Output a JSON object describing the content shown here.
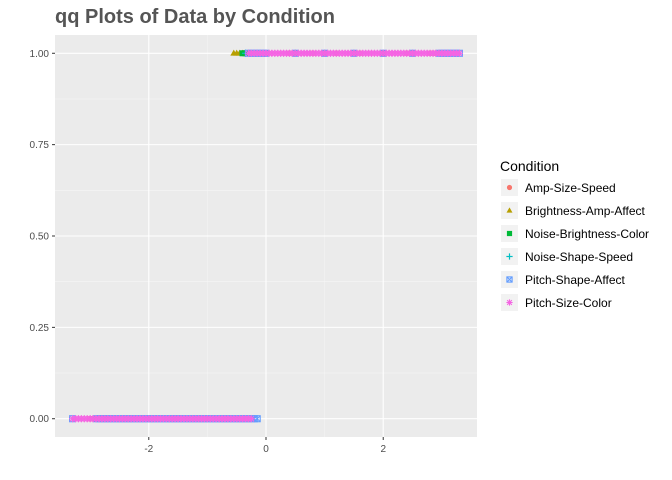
{
  "chart_data": {
    "type": "scatter",
    "title": "qq Plots of Data by Condition",
    "xlabel": "",
    "ylabel": "",
    "xlim": [
      -3.6,
      3.6
    ],
    "ylim": [
      -0.05,
      1.05
    ],
    "x_ticks": [
      -2,
      0,
      2
    ],
    "y_ticks": [
      0.0,
      0.25,
      0.5,
      0.75,
      1.0
    ],
    "x_tick_labels": [
      "-2",
      "0",
      "2"
    ],
    "y_tick_labels": [
      "0.00",
      "0.25",
      "0.50",
      "0.75",
      "1.00"
    ],
    "grid": true,
    "legend": {
      "title": "Condition",
      "position": "right"
    },
    "series": [
      {
        "name": "Amp-Size-Speed",
        "color": "#F8766D",
        "shape": "circle",
        "points_y0": [
          -3.0,
          -2.8,
          -2.6,
          -2.4,
          -2.2,
          -2.0,
          -1.8,
          -1.6,
          -1.4,
          -1.2,
          -1.0,
          -0.8
        ],
        "points_y1": [
          -0.3,
          0.0,
          0.4,
          0.8,
          1.2,
          1.6,
          2.0,
          2.4,
          2.8,
          3.0
        ]
      },
      {
        "name": "Brightness-Amp-Affect",
        "color": "#B79F00",
        "shape": "triangle",
        "points_y0": [
          -2.9,
          -2.7,
          -2.5,
          -2.3,
          -2.1,
          -1.9,
          -1.7,
          -1.5,
          -1.3,
          -1.1,
          -0.9,
          -0.6
        ],
        "points_y1": [
          -0.55,
          -0.5,
          -0.45,
          -0.4,
          -0.35,
          -0.3,
          0.0,
          0.5,
          1.0,
          1.5
        ]
      },
      {
        "name": "Noise-Brightness-Color",
        "color": "#00BA38",
        "shape": "square",
        "points_y0": [
          -2.9,
          -2.6,
          -2.3,
          -2.0,
          -1.7,
          -1.4,
          -1.1,
          -0.8,
          -0.5
        ],
        "points_y1": [
          -0.4,
          -0.35,
          -0.3,
          0.0,
          0.5,
          1.0,
          1.5,
          2.0,
          2.5
        ]
      },
      {
        "name": "Noise-Shape-Speed",
        "color": "#00BFC4",
        "shape": "plus",
        "points_y0": [
          -2.8,
          -2.5,
          -2.2,
          -1.9,
          -1.6,
          -1.3,
          -1.0,
          -0.7,
          -0.4
        ],
        "points_y1": [
          -0.35,
          -0.3,
          -0.25,
          0.0,
          0.5,
          1.0,
          1.5,
          2.0,
          2.5
        ]
      },
      {
        "name": "Pitch-Shape-Affect",
        "color": "#619CFF",
        "shape": "square-cross",
        "points_y0": [
          -3.3,
          -2.9,
          -2.7,
          -2.5,
          -2.2,
          -1.9,
          -1.6,
          -1.3,
          -1.0,
          -0.7,
          -0.4,
          -0.15
        ],
        "points_y1": [
          -0.3,
          0.0,
          0.5,
          1.0,
          1.5,
          2.0,
          2.5,
          2.95,
          3.3
        ]
      },
      {
        "name": "Pitch-Size-Color",
        "color": "#F564E3",
        "shape": "asterisk",
        "points_y0": [
          -3.3,
          -3.0,
          -2.8,
          -2.6,
          -2.45,
          -2.3,
          -2.15,
          -2.0,
          -1.85,
          -1.7,
          -1.55,
          -1.4,
          -1.25,
          -1.1,
          -0.95,
          -0.8,
          -0.65,
          -0.5,
          -0.35,
          -0.25
        ],
        "points_y1": [
          -0.3,
          -0.2,
          0.0,
          0.2,
          0.4,
          0.6,
          0.8,
          1.0,
          1.2,
          1.4,
          1.6,
          1.8,
          2.0,
          2.2,
          2.4,
          2.6,
          2.8,
          2.95,
          3.3
        ]
      }
    ]
  }
}
